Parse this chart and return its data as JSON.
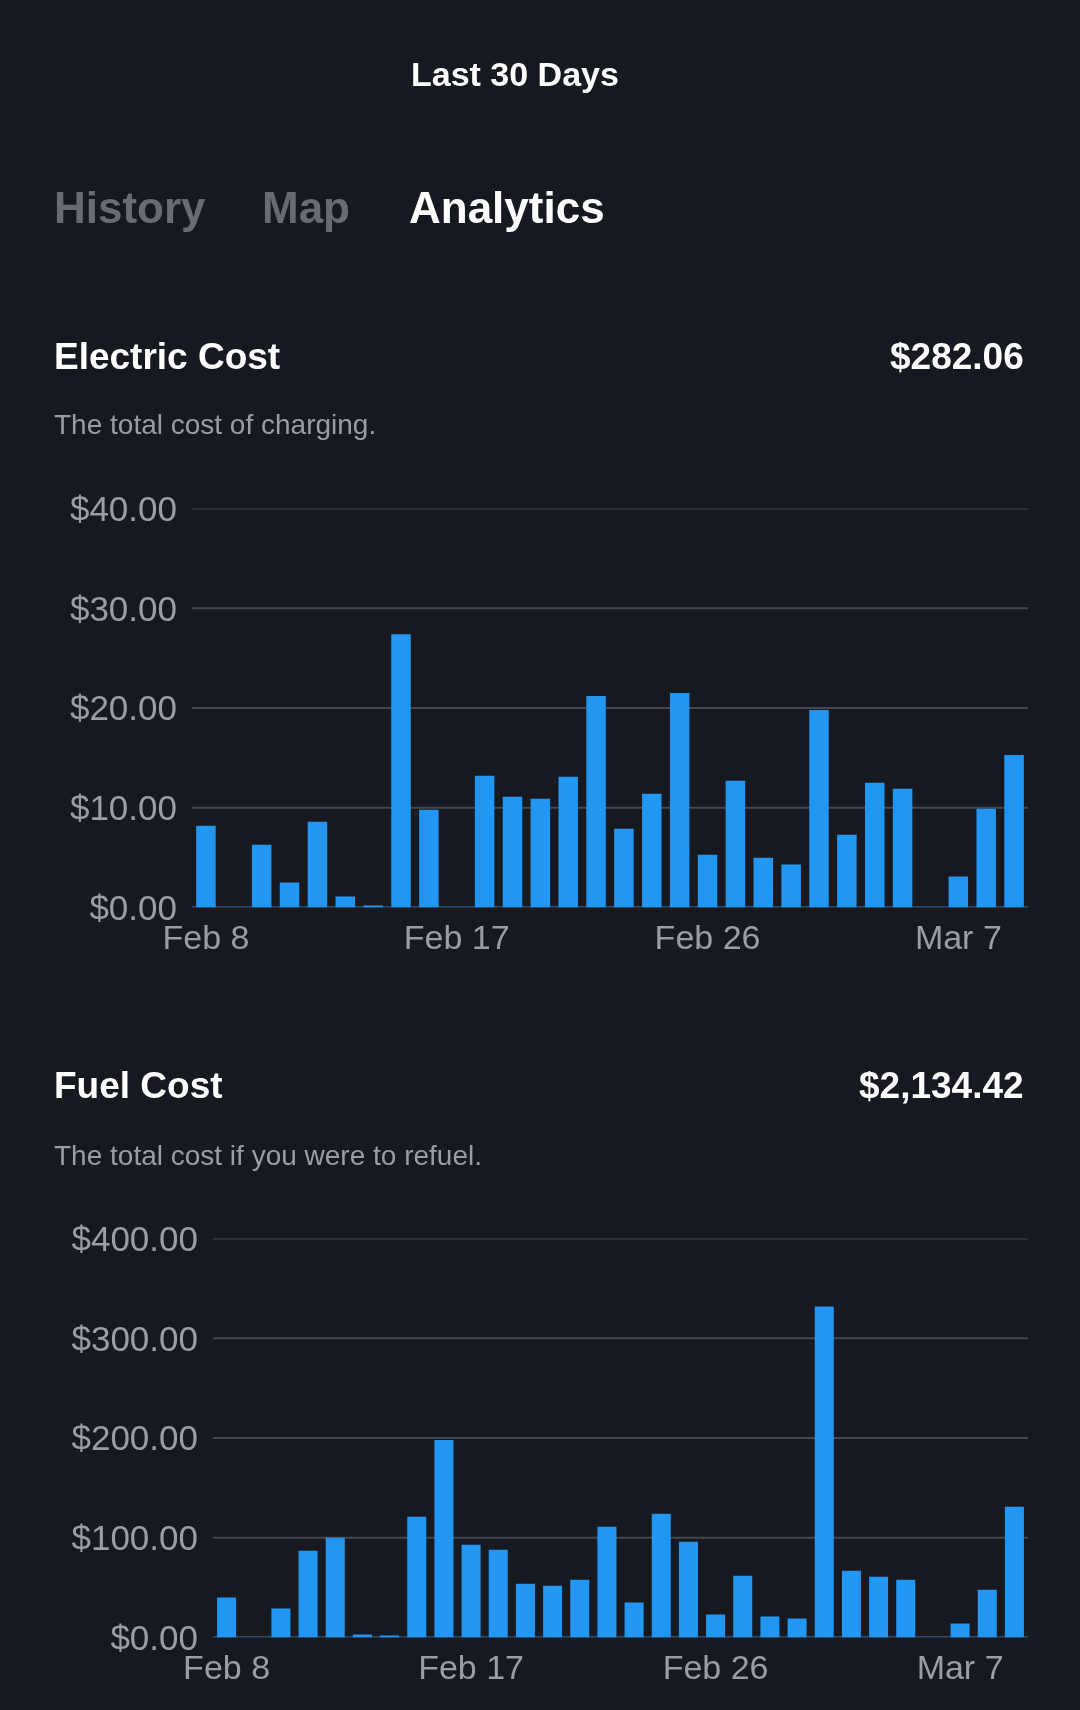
{
  "chart_data": [
    {
      "type": "other",
      "title": "Last 30 Days",
      "annotations": [
        "History",
        "Map",
        "Analytics"
      ]
    },
    {
      "type": "bar",
      "title": "Electric Cost",
      "subtitle": "The total cost of charging.",
      "annotations": [
        "$282.06"
      ],
      "categories": [
        "Feb 8",
        null,
        null,
        null,
        null,
        null,
        null,
        null,
        null,
        "Feb 17",
        null,
        null,
        null,
        null,
        null,
        null,
        null,
        null,
        "Feb 26",
        null,
        null,
        null,
        null,
        null,
        null,
        null,
        null,
        "Mar 7",
        null,
        null
      ],
      "values": [
        8.2,
        0,
        6.3,
        2.5,
        8.6,
        1.1,
        0.2,
        27.4,
        9.8,
        0,
        13.2,
        11.1,
        10.9,
        13.1,
        21.2,
        7.9,
        11.4,
        21.5,
        5.3,
        12.7,
        5.0,
        4.3,
        19.8,
        7.3,
        12.5,
        11.9,
        0,
        3.1,
        9.9,
        15.3
      ],
      "color": "#2196f3",
      "ylim": [
        0,
        40
      ],
      "yticks": [
        {
          "value": 0,
          "label": "$0.00"
        },
        {
          "value": 10,
          "label": "$10.00"
        },
        {
          "value": 20,
          "label": "$20.00"
        },
        {
          "value": 30,
          "label": "$30.00"
        },
        {
          "value": 40,
          "label": "$40.00"
        }
      ],
      "grid": "y"
    },
    {
      "type": "bar",
      "title": "Fuel Cost",
      "subtitle": "The total cost if you were to refuel.",
      "annotations": [
        "$2,134.42"
      ],
      "categories": [
        "Feb 8",
        null,
        null,
        null,
        null,
        null,
        null,
        null,
        null,
        "Feb 17",
        null,
        null,
        null,
        null,
        null,
        null,
        null,
        null,
        "Feb 26",
        null,
        null,
        null,
        null,
        null,
        null,
        null,
        null,
        "Mar 7",
        null,
        null
      ],
      "values": [
        40,
        0,
        29,
        87,
        100,
        3,
        2,
        121,
        198,
        93,
        88,
        54,
        52,
        58,
        111,
        35,
        124,
        96,
        23,
        62,
        21,
        19,
        332,
        67,
        61,
        58,
        0,
        14,
        48,
        131
      ],
      "color": "#2196f3",
      "ylim": [
        0,
        400
      ],
      "yticks": [
        {
          "value": 0,
          "label": "$0.00"
        },
        {
          "value": 100,
          "label": "$100.00"
        },
        {
          "value": 200,
          "label": "$200.00"
        },
        {
          "value": 300,
          "label": "$300.00"
        },
        {
          "value": 400,
          "label": "$400.00"
        }
      ],
      "grid": "y"
    }
  ]
}
